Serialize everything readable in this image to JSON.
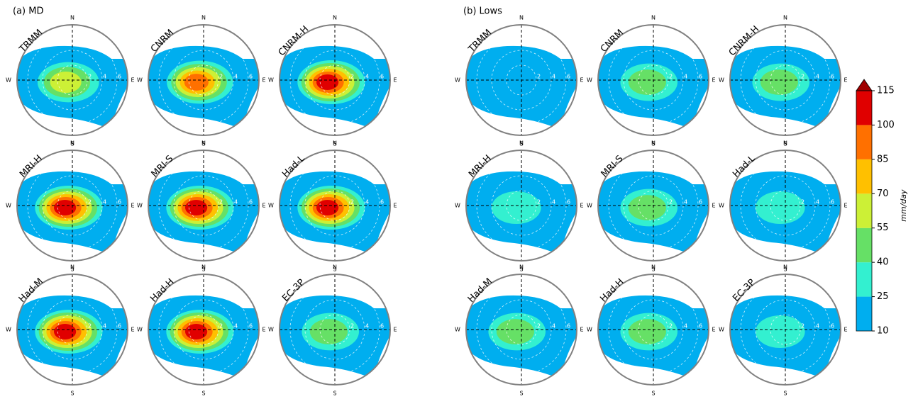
{
  "chart_data": {
    "type": "polar-contour",
    "groups": [
      {
        "title": "(a) MD",
        "panels": [
          "TRMM",
          "CNRM",
          "CNRM-H",
          "MRI-H",
          "MRI-S",
          "Had-L",
          "Had-M",
          "Had-H",
          "EC-3P"
        ]
      },
      {
        "title": "(b) Lows",
        "panels": [
          "TRMM",
          "CNRM",
          "CNRM-H",
          "MRI-H",
          "MRI-S",
          "Had-L",
          "Had-M",
          "Had-H",
          "EC-3P"
        ]
      }
    ],
    "compass": [
      "N",
      "E",
      "S",
      "W"
    ],
    "rings": [
      2,
      4,
      6
    ],
    "colorbar": {
      "label": "mm/day",
      "levels": [
        10,
        25,
        40,
        55,
        70,
        85,
        100,
        115
      ],
      "colors": [
        "#00aeef",
        "#33f0d0",
        "#66e066",
        "#ccf036",
        "#ffc000",
        "#ff7000",
        "#e00000"
      ],
      "extend_color": "#a00000"
    }
  }
}
